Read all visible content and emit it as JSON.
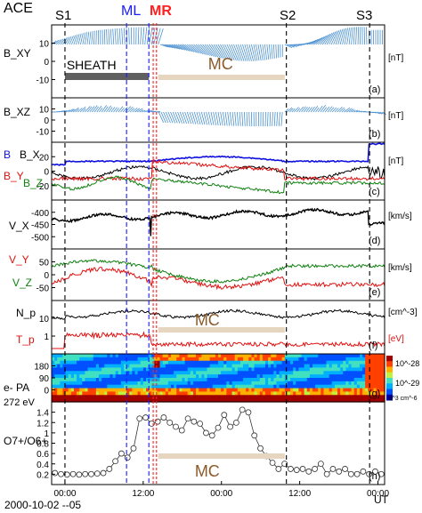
{
  "header": {
    "spacecraft": "ACE",
    "markers": [
      {
        "label": "S1",
        "color": "#000000"
      },
      {
        "label": "ML",
        "color": "#1a1aff"
      },
      {
        "label": "MR",
        "color": "#ff2020"
      },
      {
        "label": "S2",
        "color": "#000000"
      },
      {
        "label": "S3",
        "color": "#000000"
      }
    ]
  },
  "footer": {
    "date_label": "2000-10-02 --05",
    "ut_label": "UT",
    "time_ticks": [
      "00:00",
      "12:00",
      "00:00",
      "12:00",
      "00:00"
    ]
  },
  "annotations": {
    "sheath": "SHEATH",
    "mc": "MC"
  },
  "colors": {
    "black": "#000000",
    "blue": "#1010e0",
    "red": "#e01010",
    "green": "#108010",
    "vector_blue": "#4a90d0",
    "sheath_bar": "#606060",
    "mc_bar": "#e6d5bf",
    "mc_text": "#8b5a2b"
  },
  "chart_data": [
    {
      "panel": "a",
      "type": "line",
      "ylabel": "B_XY",
      "unit": "[nT]",
      "yticks": [
        10,
        0,
        -10
      ],
      "description_series": [
        {
          "values": [
            0,
            2,
            5,
            8,
            12,
            14,
            15,
            16,
            15,
            12,
            8,
            6,
            4,
            2,
            0,
            3,
            6,
            9,
            12,
            14,
            16,
            17,
            17,
            15,
            13,
            10,
            8,
            6,
            4,
            2,
            1,
            3,
            5,
            8,
            10,
            8,
            5
          ]
        }
      ]
    },
    {
      "panel": "b",
      "type": "line",
      "ylabel": "B_XZ",
      "unit": "[nT]",
      "yticks": [
        10,
        0,
        -10
      ]
    },
    {
      "panel": "c",
      "type": "line",
      "ylabel": "B  B_X  B_Y  B_Z",
      "unit": "[nT]",
      "yticks": [
        20,
        0,
        -20
      ],
      "series": [
        {
          "name": "B",
          "color": "#1010e0"
        },
        {
          "name": "B_X",
          "color": "#000000"
        },
        {
          "name": "B_Y",
          "color": "#e01010"
        },
        {
          "name": "B_Z",
          "color": "#108010"
        }
      ]
    },
    {
      "panel": "d",
      "type": "line",
      "ylabel": "V_X",
      "unit": "[km/s]",
      "yticks": [
        -400,
        -450,
        -500
      ]
    },
    {
      "panel": "e",
      "type": "line",
      "ylabel": "V_Y V_Z",
      "unit": "[km/s]",
      "yticks": [
        50,
        0,
        -50
      ],
      "series": [
        {
          "name": "V_Y",
          "color": "#e01010"
        },
        {
          "name": "V_Z",
          "color": "#108010"
        }
      ]
    },
    {
      "panel": "f",
      "type": "line",
      "ylabel": "N_p  T_p",
      "unit_top": "[cm^-3]",
      "unit_bottom": "[eV]",
      "yticks": [
        10,
        1
      ]
    },
    {
      "panel": "g",
      "type": "heatmap",
      "ylabel": "e- PA",
      "ylabel2": "272 eV",
      "yticks": [
        180,
        90,
        0
      ],
      "colorbar_ticks": [
        "10^-28",
        "10^-29",
        "10^-30"
      ],
      "colorbar_unit": "s^3 cm^-6"
    },
    {
      "panel": "h",
      "type": "line",
      "ylabel": "O7+/O6+",
      "yticks": [
        1.4,
        1.2,
        1.0,
        0.8,
        0.6,
        0.4,
        0.2
      ],
      "values": [
        0.22,
        0.2,
        0.19,
        0.2,
        0.19,
        0.2,
        0.2,
        0.21,
        0.22,
        0.3,
        0.45,
        0.6,
        0.52,
        0.7,
        1.28,
        1.3,
        1.18,
        1.22,
        1.3,
        1.2,
        1.12,
        1.05,
        1.28,
        1.22,
        1.18,
        1.0,
        0.95,
        1.1,
        1.35,
        1.12,
        1.2,
        1.45,
        1.4,
        0.95,
        0.7,
        0.55,
        0.42,
        0.3,
        0.4,
        0.3,
        0.28,
        0.3,
        0.25,
        0.3,
        0.4,
        0.2,
        0.3,
        0.25,
        0.3,
        0.2,
        0.2,
        0.25,
        0.2,
        0.25,
        0.2
      ],
      "ylim": [
        0.1,
        1.5
      ]
    }
  ]
}
